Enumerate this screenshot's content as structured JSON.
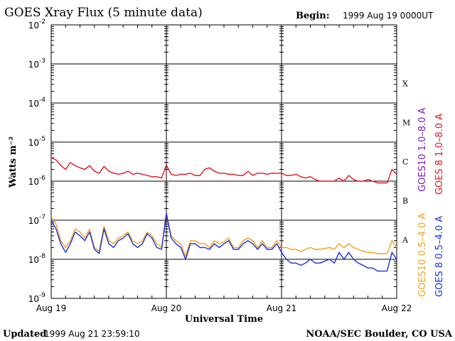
{
  "chart_data": {
    "type": "line",
    "title": "GOES Xray Flux (5 minute data)",
    "begin_label": "Begin:",
    "begin_value": "1999 Aug 19 0000UT",
    "xlabel": "Universal Time",
    "ylabel": "Watts m⁻²",
    "x_unit": "hours since begin",
    "xlim": [
      0,
      72
    ],
    "ylim_log10": [
      -9,
      -2
    ],
    "y_scale": "log",
    "y_ticks": [
      {
        "base": "10",
        "exp": "-9"
      },
      {
        "base": "10",
        "exp": "-8"
      },
      {
        "base": "10",
        "exp": "-7"
      },
      {
        "base": "10",
        "exp": "-6"
      },
      {
        "base": "10",
        "exp": "-5"
      },
      {
        "base": "10",
        "exp": "-4"
      },
      {
        "base": "10",
        "exp": "-3"
      },
      {
        "base": "10",
        "exp": "-2"
      }
    ],
    "x_ticks": [
      "Aug 19",
      "Aug 20",
      "Aug 21",
      "Aug 22"
    ],
    "flare_classes": [
      "A",
      "B",
      "C",
      "M",
      "X"
    ],
    "grid": "horizontal lines at each decade",
    "legend_placement": "right, vertical",
    "legend": [
      {
        "label": "GOES10 1.0–8.0 A",
        "color": "#7a1fb5"
      },
      {
        "label": "GOES 8 1.0–8.0 A",
        "color": "#e8141c"
      },
      {
        "label": "GOES10 0.5–4.0 A",
        "color": "#f0a020"
      },
      {
        "label": "GOES 8 0.5–4.0 A",
        "color": "#1a30e0"
      }
    ],
    "series": [
      {
        "key": "goes8_long",
        "color": "#e8141c",
        "x": [
          0,
          1,
          2,
          3,
          4,
          5,
          6,
          7,
          8,
          9,
          10,
          11,
          12,
          13,
          14,
          15,
          16,
          17,
          18,
          19,
          20,
          21,
          22,
          23,
          24,
          25,
          26,
          27,
          28,
          29,
          30,
          31,
          32,
          33,
          34,
          35,
          36,
          37,
          38,
          39,
          40,
          41,
          42,
          43,
          44,
          45,
          46,
          47,
          48,
          49,
          50,
          51,
          52,
          53,
          54,
          55,
          56,
          57,
          58,
          59,
          60,
          61,
          62,
          63,
          64,
          65,
          66,
          67,
          68,
          69,
          70,
          71,
          72
        ],
        "y": [
          4e-06,
          3.5e-06,
          2.5e-06,
          2e-06,
          3e-06,
          2.5e-06,
          2.2e-06,
          2e-06,
          2.5e-06,
          1.8e-06,
          1.6e-06,
          2.4e-06,
          1.8e-06,
          1.6e-06,
          1.5e-06,
          1.6e-06,
          1.8e-06,
          1.5e-06,
          1.6e-06,
          1.5e-06,
          1.4e-06,
          1.3e-06,
          1.3e-06,
          1.2e-06,
          2.6e-06,
          1.5e-06,
          1.4e-06,
          1.5e-06,
          1.5e-06,
          1.6e-06,
          1.4e-06,
          1.4e-06,
          2e-06,
          2.2e-06,
          1.8e-06,
          1.6e-06,
          1.6e-06,
          1.5e-06,
          1.5e-06,
          1.4e-06,
          1.4e-06,
          1.8e-06,
          1.4e-06,
          1.6e-06,
          1.6e-06,
          1.5e-06,
          1.6e-06,
          1.6e-06,
          1.6e-06,
          1.4e-06,
          1.4e-06,
          1.5e-06,
          1.3e-06,
          1.2e-06,
          1.3e-06,
          1.1e-06,
          1e-06,
          1e-06,
          1e-06,
          1e-06,
          1.2e-06,
          1e-06,
          1.4e-06,
          1.1e-06,
          1e-06,
          1e-06,
          1.1e-06,
          1e-06,
          9e-07,
          9e-07,
          9e-07,
          2e-06,
          1.5e-06
        ]
      },
      {
        "key": "goes10_short",
        "color": "#f0a020",
        "x": [
          0,
          1,
          2,
          3,
          4,
          5,
          6,
          7,
          8,
          9,
          10,
          11,
          12,
          13,
          14,
          15,
          16,
          17,
          18,
          19,
          20,
          21,
          22,
          23,
          24,
          25,
          26,
          27,
          28,
          29,
          30,
          31,
          32,
          33,
          34,
          35,
          36,
          37,
          38,
          39,
          40,
          41,
          42,
          43,
          44,
          45,
          46,
          47,
          48,
          49,
          50,
          51,
          52,
          53,
          54,
          55,
          56,
          57,
          58,
          59,
          60,
          61,
          62,
          63,
          64,
          65,
          66,
          67,
          68,
          69,
          70,
          71,
          72
        ],
        "y": [
          1.2e-07,
          8e-08,
          3e-08,
          2e-08,
          3e-08,
          6e-08,
          5e-08,
          3.5e-08,
          6e-08,
          2e-08,
          1.6e-08,
          7e-08,
          3e-08,
          2.5e-08,
          3.5e-08,
          4e-08,
          5e-08,
          3e-08,
          2.5e-08,
          3e-08,
          5e-08,
          4e-08,
          2.5e-08,
          2e-08,
          1.5e-07,
          4e-08,
          3e-08,
          2.5e-08,
          1.2e-08,
          3e-08,
          3e-08,
          2.5e-08,
          2.5e-08,
          2e-08,
          3e-08,
          2.5e-08,
          2.8e-08,
          3.5e-08,
          2e-08,
          2e-08,
          3e-08,
          3.5e-08,
          3e-08,
          2e-08,
          3e-08,
          2e-08,
          2e-08,
          3e-08,
          2e-08,
          2e-08,
          1.8e-08,
          1.8e-08,
          1.6e-08,
          1.8e-08,
          2e-08,
          1.8e-08,
          1.8e-08,
          1.9e-08,
          2e-08,
          1.8e-08,
          2.5e-08,
          2e-08,
          2.5e-08,
          2e-08,
          1.8e-08,
          1.6e-08,
          1.5e-08,
          1.5e-08,
          1.4e-08,
          1.4e-08,
          1.4e-08,
          3e-08,
          2e-08
        ]
      },
      {
        "key": "goes8_short",
        "color": "#1a30e0",
        "x": [
          0,
          1,
          2,
          3,
          4,
          5,
          6,
          7,
          8,
          9,
          10,
          11,
          12,
          13,
          14,
          15,
          16,
          17,
          18,
          19,
          20,
          21,
          22,
          23,
          24,
          25,
          26,
          27,
          28,
          29,
          30,
          31,
          32,
          33,
          34,
          35,
          36,
          37,
          38,
          39,
          40,
          41,
          42,
          43,
          44,
          45,
          46,
          47,
          48,
          49,
          50,
          51,
          52,
          53,
          54,
          55,
          56,
          57,
          58,
          59,
          60,
          61,
          62,
          63,
          64,
          65,
          66,
          67,
          68,
          69,
          70,
          71,
          72
        ],
        "y": [
          1e-07,
          6e-08,
          2.5e-08,
          1.5e-08,
          2.5e-08,
          5e-08,
          4e-08,
          3e-08,
          5e-08,
          1.8e-08,
          1.4e-08,
          6e-08,
          2.5e-08,
          2e-08,
          3e-08,
          3.5e-08,
          4.5e-08,
          2.5e-08,
          2e-08,
          2.5e-08,
          4.5e-08,
          3.5e-08,
          2e-08,
          1.8e-08,
          1.5e-07,
          3.5e-08,
          2.5e-08,
          2e-08,
          1e-08,
          2.5e-08,
          2.5e-08,
          2e-08,
          2e-08,
          1.8e-08,
          2.5e-08,
          2e-08,
          2.5e-08,
          3e-08,
          1.8e-08,
          1.8e-08,
          2.5e-08,
          3e-08,
          2.5e-08,
          1.8e-08,
          2.5e-08,
          1.8e-08,
          1.8e-08,
          2.5e-08,
          1.5e-08,
          1e-08,
          8e-09,
          8e-09,
          7e-09,
          8e-09,
          1e-08,
          8e-09,
          8e-09,
          9e-09,
          1e-08,
          8e-09,
          1.5e-08,
          1e-08,
          1.5e-08,
          1e-08,
          8e-09,
          7e-09,
          6e-09,
          6e-09,
          5e-09,
          5e-09,
          5e-09,
          1.5e-08,
          1e-08
        ]
      }
    ]
  },
  "footer": {
    "updated_label": "Updated",
    "updated_value": "1999 Aug 21 23:59:10",
    "credit": "NOAA/SEC Boulder, CO USA"
  }
}
